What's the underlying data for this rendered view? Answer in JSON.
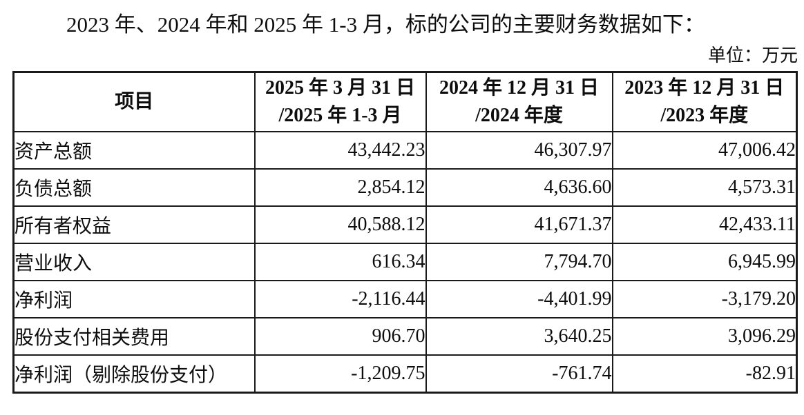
{
  "page": {
    "title": "2023 年、2024 年和 2025 年 1-3 月，标的公司的主要财务数据如下：",
    "unit_label": "单位：万元"
  },
  "table": {
    "header": {
      "item": "项目",
      "periods": [
        {
          "line1": "2025 年 3 月 31 日",
          "line2": "/2025 年 1-3 月"
        },
        {
          "line1": "2024 年 12 月 31 日",
          "line2": "/2024 年度"
        },
        {
          "line1": "2023 年 12 月 31 日",
          "line2": "/2023 年度"
        }
      ]
    },
    "rows": [
      {
        "label": "资产总额",
        "values": [
          "43,442.23",
          "46,307.97",
          "47,006.42"
        ]
      },
      {
        "label": "负债总额",
        "values": [
          "2,854.12",
          "4,636.60",
          "4,573.31"
        ]
      },
      {
        "label": "所有者权益",
        "values": [
          "40,588.12",
          "41,671.37",
          "42,433.11"
        ]
      },
      {
        "label": "营业收入",
        "values": [
          "616.34",
          "7,794.70",
          "6,945.99"
        ]
      },
      {
        "label": "净利润",
        "values": [
          "-2,116.44",
          "-4,401.99",
          "-3,179.20"
        ]
      },
      {
        "label": "股份支付相关费用",
        "values": [
          "906.70",
          "3,640.25",
          "3,096.29"
        ]
      },
      {
        "label": "净利润（剔除股份支付）",
        "values": [
          "-1,209.75",
          "-761.74",
          "-82.91"
        ]
      }
    ]
  },
  "colors": {
    "text": "#0d0d0d",
    "border": "#1a1a1a",
    "background": "#ffffff"
  }
}
